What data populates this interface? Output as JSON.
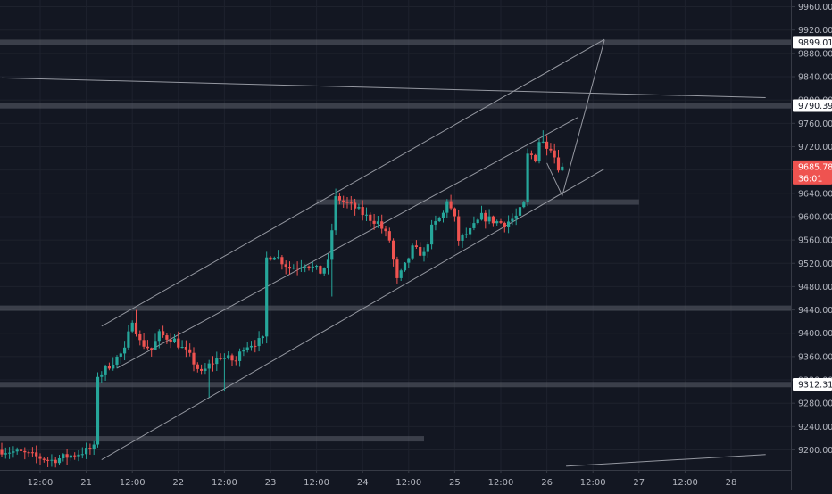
{
  "chart_data": {
    "type": "candlestick",
    "title": "",
    "colors": {
      "background": "#131722",
      "grid": "#1e222d",
      "up": "#26a69a",
      "down": "#ef5350",
      "axis_text": "#b2b5be",
      "channel": "#9598a1",
      "zone": "#5d606b",
      "axis_border": "#363a45",
      "last_price_bg": "#ef5350",
      "label_bg": "#ffffff",
      "label_text": "#131722"
    },
    "y_axis": {
      "min": 9170,
      "max": 9970,
      "ticks": [
        9200,
        9240,
        9280,
        9320,
        9360,
        9400,
        9440,
        9480,
        9520,
        9560,
        9600,
        9640,
        9680,
        9720,
        9760,
        9800,
        9840,
        9880,
        9920,
        9960
      ],
      "tick_labels": [
        "9200.00",
        "9240.00",
        "9280.00",
        "9320.00",
        "9360.00",
        "9400.00",
        "9440.00",
        "9480.00",
        "9520.00",
        "9560.00",
        "9600.00",
        "9640.00",
        "9680.00",
        "9720.00",
        "9760.00",
        "9800.00",
        "9840.00",
        "9880.00",
        "9920.00",
        "9960.00"
      ]
    },
    "x_axis": {
      "min": 0,
      "max": 199,
      "ticks": [
        {
          "x": 10,
          "label": "12:00"
        },
        {
          "x": 22,
          "label": "21"
        },
        {
          "x": 34,
          "label": "12:00"
        },
        {
          "x": 46,
          "label": "22"
        },
        {
          "x": 58,
          "label": "12:00"
        },
        {
          "x": 70,
          "label": "23"
        },
        {
          "x": 82,
          "label": "12:00"
        },
        {
          "x": 94,
          "label": "24"
        },
        {
          "x": 106,
          "label": "12:00"
        },
        {
          "x": 118,
          "label": "25"
        },
        {
          "x": 130,
          "label": "12:00"
        },
        {
          "x": 142,
          "label": "26"
        },
        {
          "x": 154,
          "label": "12:00"
        },
        {
          "x": 166,
          "label": "27"
        },
        {
          "x": 178,
          "label": "12:00"
        },
        {
          "x": 190,
          "label": "28"
        }
      ]
    },
    "price_labels": [
      {
        "value": 9899.01,
        "text": "9899.01",
        "kind": "level"
      },
      {
        "value": 9790.39,
        "text": "9790.39",
        "kind": "level"
      },
      {
        "value": 9685.78,
        "text": "9685.78",
        "kind": "last"
      },
      {
        "value": 9312.31,
        "text": "9312.31",
        "kind": "level"
      }
    ],
    "countdown": "36:01",
    "horizontal_zones": [
      {
        "price": 9899,
        "x_start": 0,
        "x_end": 199
      },
      {
        "price": 9790,
        "x_start": 0,
        "x_end": 199
      },
      {
        "price": 9625,
        "x_start": 82,
        "x_end": 166
      },
      {
        "price": 9443,
        "x_start": 0,
        "x_end": 199
      },
      {
        "price": 9312,
        "x_start": 0,
        "x_end": 199
      },
      {
        "price": 9219,
        "x_start": 0,
        "x_end": 110
      }
    ],
    "trend_lines": [
      {
        "x1": 26,
        "y1": 9412,
        "x2": 157,
        "y2": 9904
      },
      {
        "x1": 26,
        "y1": 9183,
        "x2": 157,
        "y2": 9682
      },
      {
        "x1": 30,
        "y1": 9340,
        "x2": 150,
        "y2": 9770
      },
      {
        "x1": 0,
        "y1": 9838,
        "x2": 199,
        "y2": 9804
      },
      {
        "x1": 147,
        "y1": 9172,
        "x2": 199,
        "y2": 9192
      }
    ],
    "projection": [
      [
        142,
        9692
      ],
      [
        146,
        9636
      ],
      [
        157,
        9903
      ]
    ],
    "candles": []
  }
}
